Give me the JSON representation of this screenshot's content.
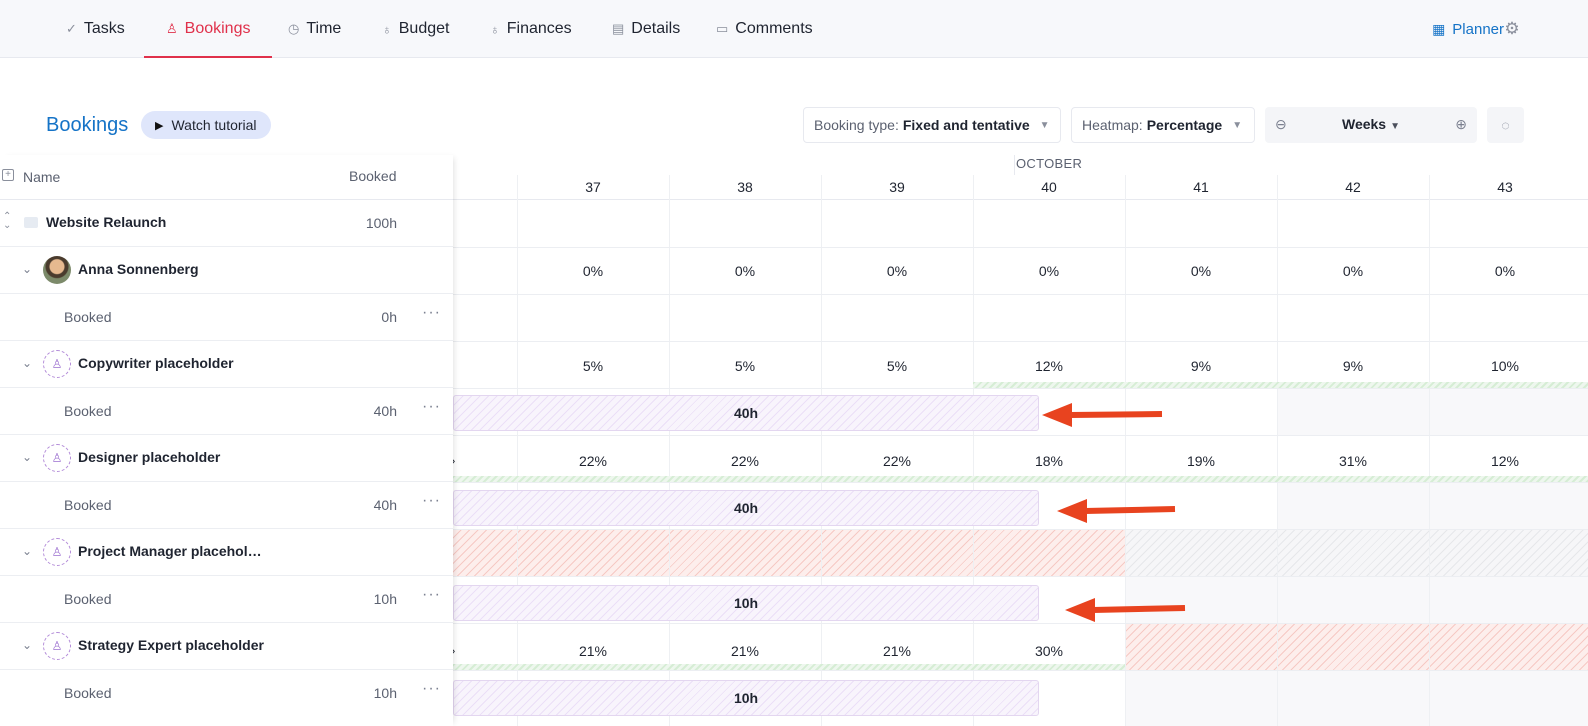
{
  "nav": {
    "tabs": [
      {
        "label": "Tasks",
        "icon": "check-icon"
      },
      {
        "label": "Bookings",
        "icon": "person-icon",
        "active": true
      },
      {
        "label": "Time",
        "icon": "clock-icon"
      },
      {
        "label": "Budget",
        "icon": "money-bag-icon"
      },
      {
        "label": "Finances",
        "icon": "finances-icon"
      },
      {
        "label": "Details",
        "icon": "document-icon"
      },
      {
        "label": "Comments",
        "icon": "comment-icon"
      }
    ],
    "planner_label": "Planner"
  },
  "toolbar": {
    "title": "Bookings",
    "watch_label": "Watch tutorial",
    "booking_type_label": "Booking type:",
    "booking_type_value": "Fixed and tentative",
    "heatmap_label": "Heatmap:",
    "heatmap_value": "Percentage",
    "zoom_value": "Weeks"
  },
  "left_header": {
    "name": "Name",
    "booked": "Booked"
  },
  "rows": {
    "project": {
      "label": "Website Relaunch",
      "hours": "100h"
    },
    "anna": {
      "label": "Anna Sonnenberg"
    },
    "anna_booked": {
      "label": "Booked",
      "hours": "0h"
    },
    "copy": {
      "label": "Copywriter placeholder"
    },
    "copy_booked": {
      "label": "Booked",
      "hours": "40h"
    },
    "designer": {
      "label": "Designer placeholder"
    },
    "designer_booked": {
      "label": "Booked",
      "hours": "40h"
    },
    "pm": {
      "label": "Project Manager placehol…"
    },
    "pm_booked": {
      "label": "Booked",
      "hours": "10h"
    },
    "strategy": {
      "label": "Strategy Expert placeholder"
    },
    "strategy_booked": {
      "label": "Booked",
      "hours": "10h"
    }
  },
  "timeline": {
    "month": "OCTOBER",
    "weeks": [
      "37",
      "38",
      "39",
      "40",
      "41",
      "42",
      "43"
    ],
    "anna_pct": [
      "0%",
      "0%",
      "0%",
      "0%",
      "0%",
      "0%",
      "0%"
    ],
    "copy_pct": [
      "5%",
      "5%",
      "5%",
      "12%",
      "9%",
      "9%",
      "10%"
    ],
    "designer_pct": [
      "22%",
      "22%",
      "22%",
      "18%",
      "19%",
      "31%",
      "12%"
    ],
    "strategy_pct": [
      "21%",
      "21%",
      "21%",
      "30%"
    ],
    "edge_mark": "›",
    "bars": {
      "copy": "40h",
      "designer": "40h",
      "pm": "10h",
      "strategy": "10h"
    }
  },
  "colors": {
    "accent": "#e0314b",
    "link": "#1573c7",
    "arrow": "#e8431f"
  }
}
